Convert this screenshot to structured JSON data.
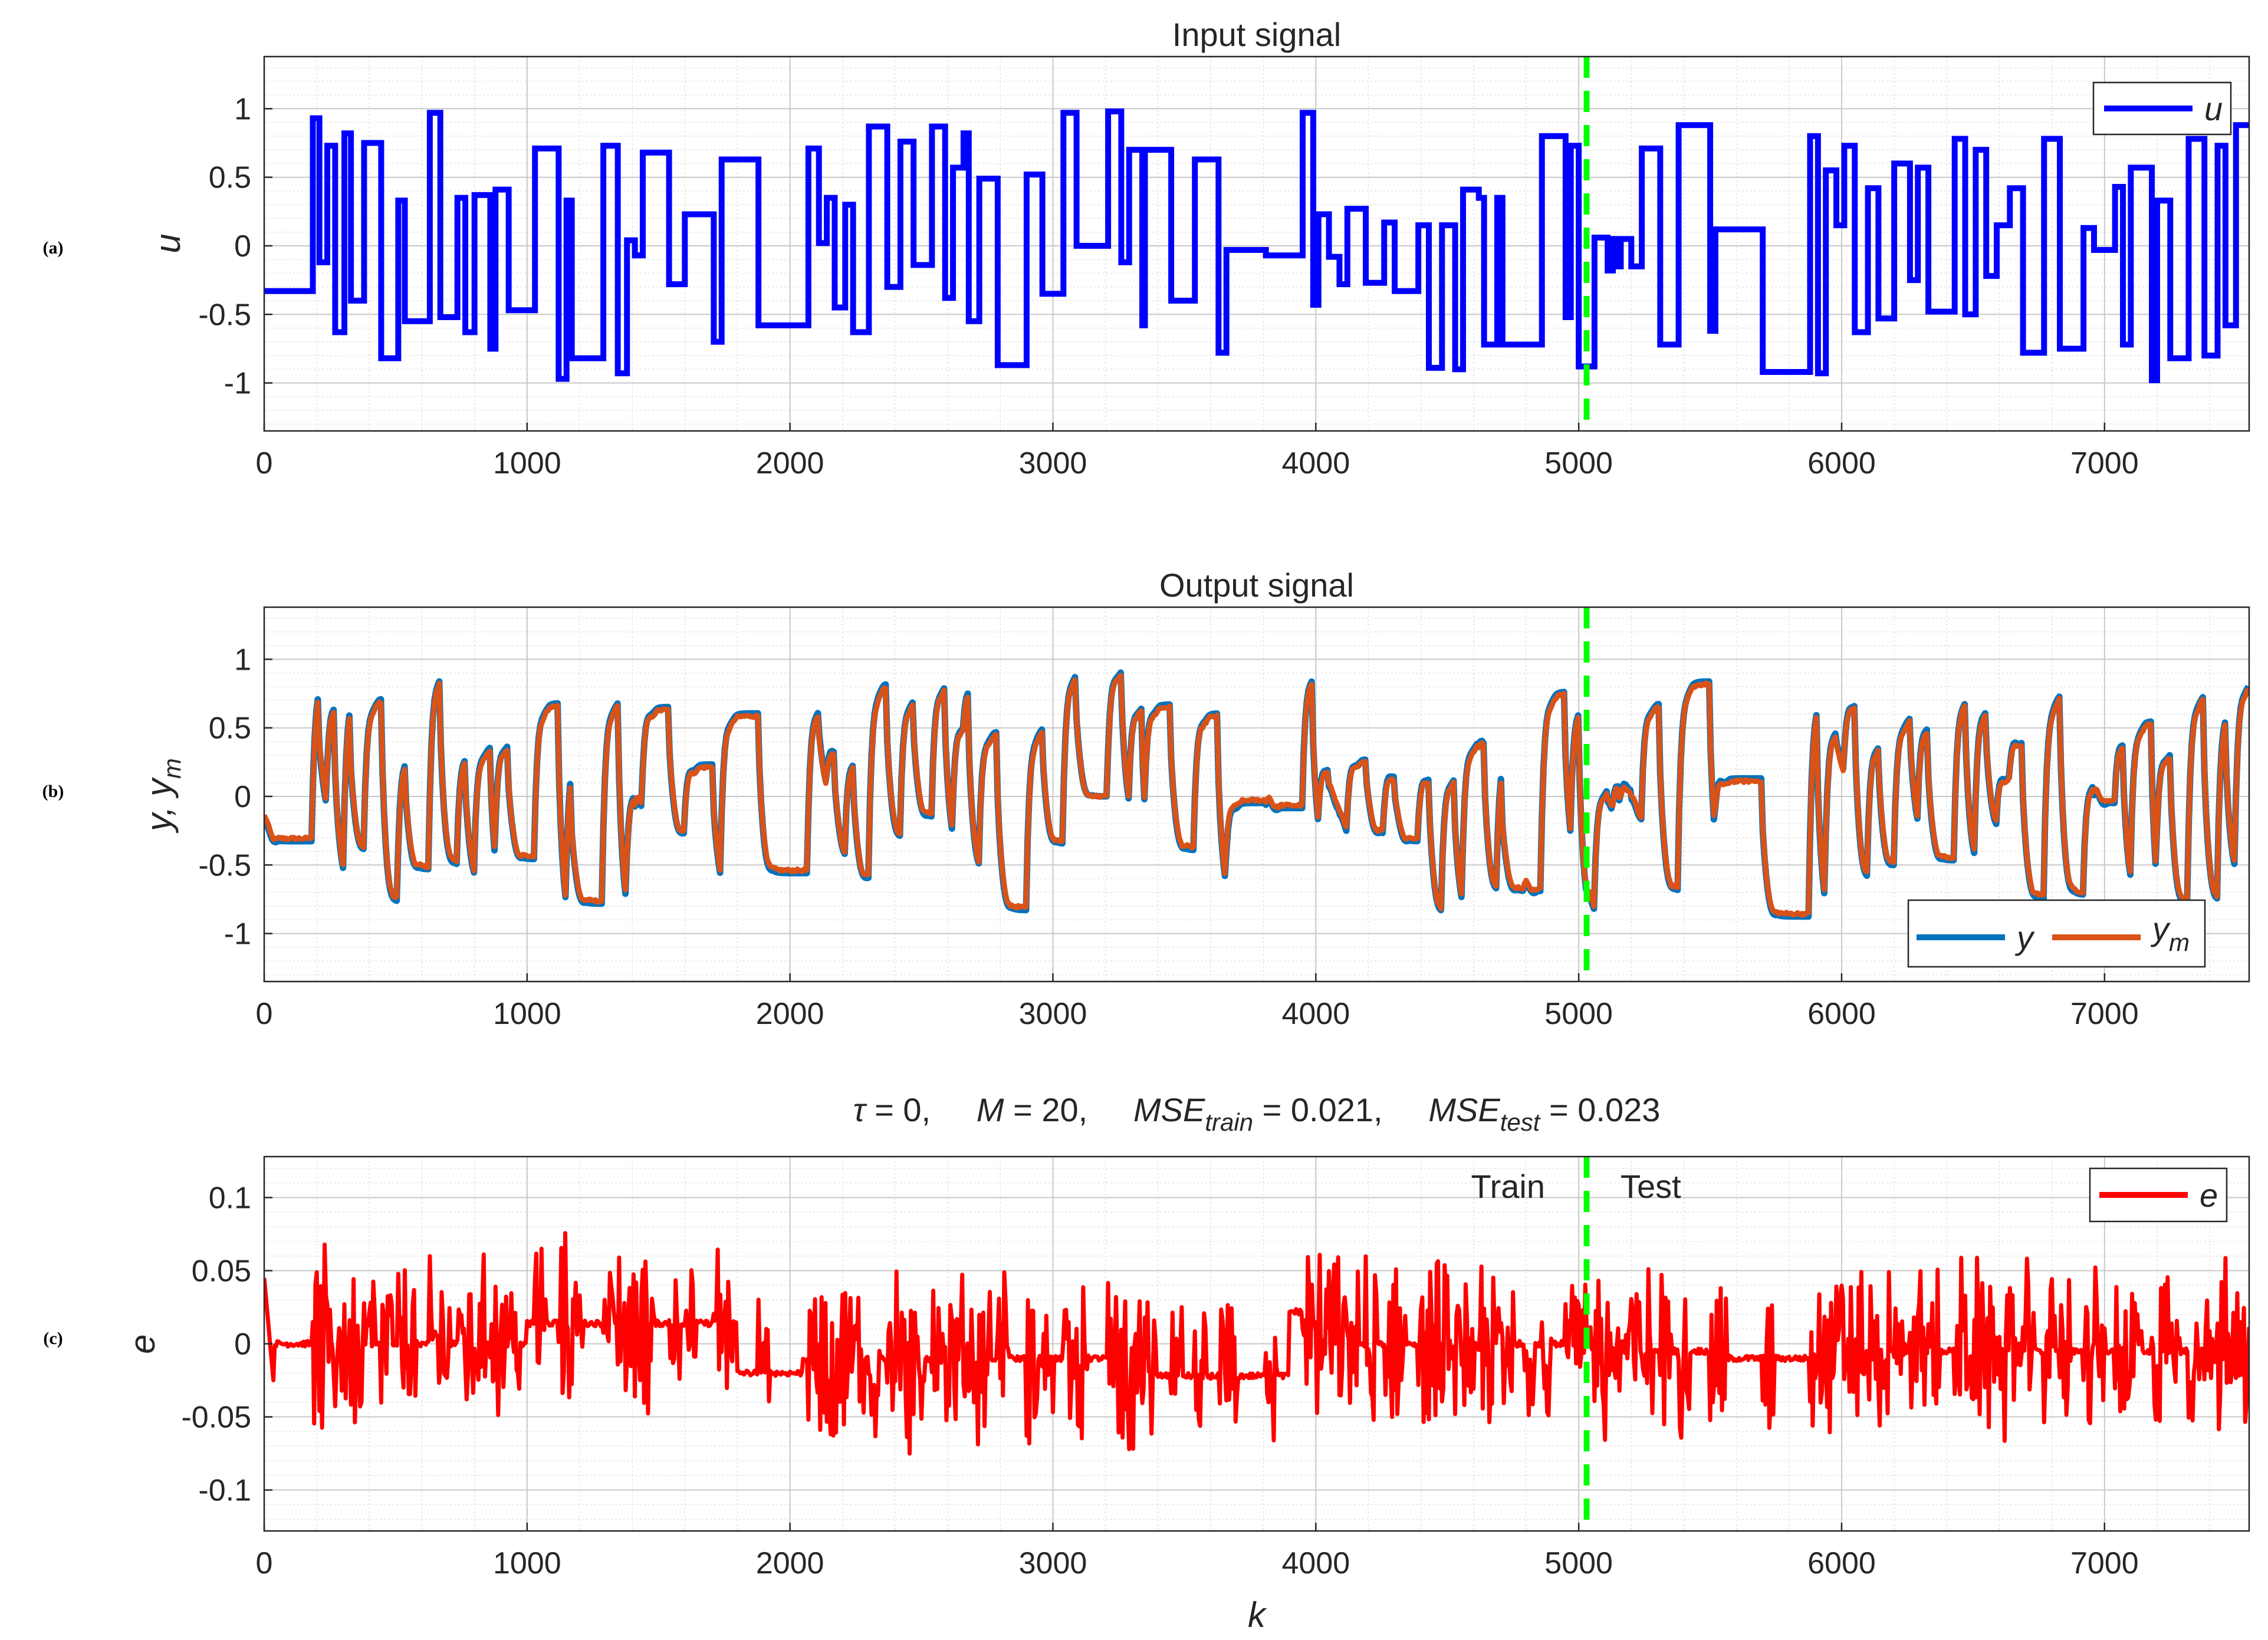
{
  "split_k": 5030,
  "chart_data": [
    {
      "type": "line",
      "panel_tag": "(a)",
      "title": "Input signal",
      "xlabel": "",
      "ylabel": "u",
      "xlim": [
        0,
        7550
      ],
      "ylim": [
        -1.35,
        1.38
      ],
      "xticks": [
        "0",
        "1000",
        "2000",
        "3000",
        "4000",
        "5000",
        "6000",
        "7000"
      ],
      "yticks": [
        "1",
        "0.5",
        "0",
        "-0.5",
        "-1"
      ],
      "grid": true,
      "legend": "top-right",
      "series": [
        {
          "name": "u",
          "color": "#0000ff",
          "step": true,
          "points": [
            [
              0,
              -0.33
            ],
            [
              185,
              0.93
            ],
            [
              210,
              -0.12
            ],
            [
              240,
              0.73
            ],
            [
              270,
              -0.63
            ],
            [
              305,
              0.82
            ],
            [
              330,
              -0.4
            ],
            [
              380,
              0.75
            ],
            [
              445,
              -0.82
            ],
            [
              510,
              0.33
            ],
            [
              535,
              -0.55
            ],
            [
              630,
              0.97
            ],
            [
              670,
              -0.52
            ],
            [
              735,
              0.35
            ],
            [
              765,
              -0.63
            ],
            [
              800,
              0.37
            ],
            [
              860,
              -0.75
            ],
            [
              880,
              0.41
            ],
            [
              930,
              -0.47
            ],
            [
              1030,
              0.71
            ],
            [
              1120,
              -0.97
            ],
            [
              1150,
              0.33
            ],
            [
              1170,
              -0.82
            ],
            [
              1290,
              0.73
            ],
            [
              1345,
              -0.93
            ],
            [
              1380,
              0.04
            ],
            [
              1410,
              -0.07
            ],
            [
              1440,
              0.68
            ],
            [
              1540,
              -0.28
            ],
            [
              1600,
              0.23
            ],
            [
              1710,
              -0.7
            ],
            [
              1740,
              0.63
            ],
            [
              1880,
              -0.58
            ],
            [
              2070,
              0.71
            ],
            [
              2110,
              0.02
            ],
            [
              2140,
              0.35
            ],
            [
              2170,
              -0.45
            ],
            [
              2210,
              0.3
            ],
            [
              2240,
              -0.63
            ],
            [
              2300,
              0.87
            ],
            [
              2370,
              -0.3
            ],
            [
              2420,
              0.76
            ],
            [
              2470,
              -0.14
            ],
            [
              2540,
              0.87
            ],
            [
              2590,
              -0.38
            ],
            [
              2620,
              0.57
            ],
            [
              2660,
              0.82
            ],
            [
              2680,
              -0.55
            ],
            [
              2720,
              0.49
            ],
            [
              2790,
              -0.87
            ],
            [
              2900,
              0.52
            ],
            [
              2960,
              -0.35
            ],
            [
              3040,
              0.97
            ],
            [
              3090,
              0.0
            ],
            [
              3210,
              0.98
            ],
            [
              3260,
              -0.12
            ],
            [
              3290,
              0.7
            ],
            [
              3340,
              -0.58
            ],
            [
              3350,
              0.7
            ],
            [
              3450,
              -0.4
            ],
            [
              3540,
              0.63
            ],
            [
              3630,
              -0.78
            ],
            [
              3660,
              -0.03
            ],
            [
              3810,
              -0.07
            ],
            [
              3950,
              0.97
            ],
            [
              3990,
              -0.43
            ],
            [
              4010,
              0.23
            ],
            [
              4050,
              -0.08
            ],
            [
              4090,
              -0.28
            ],
            [
              4120,
              0.27
            ],
            [
              4190,
              -0.27
            ],
            [
              4260,
              0.17
            ],
            [
              4300,
              -0.33
            ],
            [
              4390,
              0.15
            ],
            [
              4430,
              -0.89
            ],
            [
              4480,
              0.15
            ],
            [
              4530,
              -0.9
            ],
            [
              4560,
              0.41
            ],
            [
              4620,
              0.35
            ],
            [
              4640,
              -0.72
            ],
            [
              4690,
              0.35
            ],
            [
              4710,
              -0.72
            ],
            [
              4790,
              -0.72
            ],
            [
              4860,
              0.8
            ],
            [
              4950,
              -0.52
            ],
            [
              4970,
              0.73
            ],
            [
              5000,
              -0.88
            ],
            [
              5030,
              -0.88
            ],
            [
              5060,
              0.06
            ],
            [
              5110,
              -0.18
            ],
            [
              5130,
              0.05
            ],
            [
              5150,
              -0.15
            ],
            [
              5160,
              0.05
            ],
            [
              5200,
              -0.15
            ],
            [
              5240,
              0.71
            ],
            [
              5310,
              -0.72
            ],
            [
              5380,
              0.88
            ],
            [
              5500,
              -0.62
            ],
            [
              5520,
              0.12
            ],
            [
              5700,
              -0.92
            ],
            [
              5880,
              0.8
            ],
            [
              5910,
              -0.93
            ],
            [
              5940,
              0.55
            ],
            [
              5980,
              0.15
            ],
            [
              6010,
              0.73
            ],
            [
              6050,
              -0.63
            ],
            [
              6100,
              0.42
            ],
            [
              6140,
              -0.53
            ],
            [
              6200,
              0.6
            ],
            [
              6260,
              -0.25
            ],
            [
              6290,
              0.57
            ],
            [
              6330,
              -0.48
            ],
            [
              6430,
              0.78
            ],
            [
              6470,
              -0.5
            ],
            [
              6510,
              0.7
            ],
            [
              6550,
              -0.22
            ],
            [
              6590,
              0.15
            ],
            [
              6640,
              0.42
            ],
            [
              6690,
              -0.78
            ],
            [
              6770,
              0.78
            ],
            [
              6830,
              -0.75
            ],
            [
              6920,
              0.13
            ],
            [
              6960,
              -0.03
            ],
            [
              7040,
              0.43
            ],
            [
              7070,
              -0.72
            ],
            [
              7100,
              0.57
            ],
            [
              7180,
              -0.98
            ],
            [
              7200,
              0.33
            ],
            [
              7250,
              -0.82
            ],
            [
              7320,
              0.78
            ],
            [
              7380,
              -0.8
            ],
            [
              7430,
              0.73
            ],
            [
              7460,
              -0.58
            ],
            [
              7500,
              0.88
            ],
            [
              7550,
              0.88
            ]
          ]
        }
      ]
    },
    {
      "type": "line",
      "panel_tag": "(b)",
      "title": "Output signal",
      "xlabel": "",
      "ylabel": "y, y",
      "ylabel_sub": "m",
      "xlim": [
        0,
        7550
      ],
      "ylim": [
        -1.35,
        1.38
      ],
      "xticks": [
        "0",
        "1000",
        "2000",
        "3000",
        "4000",
        "5000",
        "6000",
        "7000"
      ],
      "yticks": [
        "1",
        "0.5",
        "0",
        "-0.5",
        "-1"
      ],
      "grid": true,
      "legend": "bottom-right",
      "series": [
        {
          "name": "y",
          "color": "#0072bd",
          "derived_from": "u",
          "offset": 0.02
        },
        {
          "name": "y",
          "name_sub": "m",
          "color": "#d95319",
          "derived_from": "u",
          "offset": 0.0
        }
      ]
    },
    {
      "type": "line",
      "panel_tag": "(c)",
      "title_parts": [
        "τ",
        " = 0,     ",
        "M",
        " = 20,     ",
        "MSE",
        "train",
        " = 0.021,     ",
        "MSE",
        "test",
        " = 0.023"
      ],
      "xlabel": "k",
      "ylabel": "e",
      "xlim": [
        0,
        7550
      ],
      "ylim": [
        -0.128,
        0.128
      ],
      "xticks": [
        "0",
        "1000",
        "2000",
        "3000",
        "4000",
        "5000",
        "6000",
        "7000"
      ],
      "yticks": [
        "0.1",
        "0.05",
        "0",
        "-0.05",
        "-0.1"
      ],
      "grid": true,
      "legend": "top-right",
      "annotations": [
        "Train",
        "Test"
      ],
      "series": [
        {
          "name": "e",
          "color": "#ff0000",
          "noise_amplitude": 0.05,
          "quiet_levels": [
            [
              0,
              0.0
            ],
            [
              1000,
              0.014
            ],
            [
              1800,
              -0.02
            ],
            [
              2050,
              -0.01
            ],
            [
              3300,
              -0.022
            ],
            [
              3900,
              0.022
            ],
            [
              4000,
              0.0
            ],
            [
              5000,
              -0.005
            ],
            [
              5500,
              -0.01
            ],
            [
              6000,
              -0.005
            ],
            [
              7500,
              -0.01
            ]
          ]
        }
      ]
    }
  ]
}
